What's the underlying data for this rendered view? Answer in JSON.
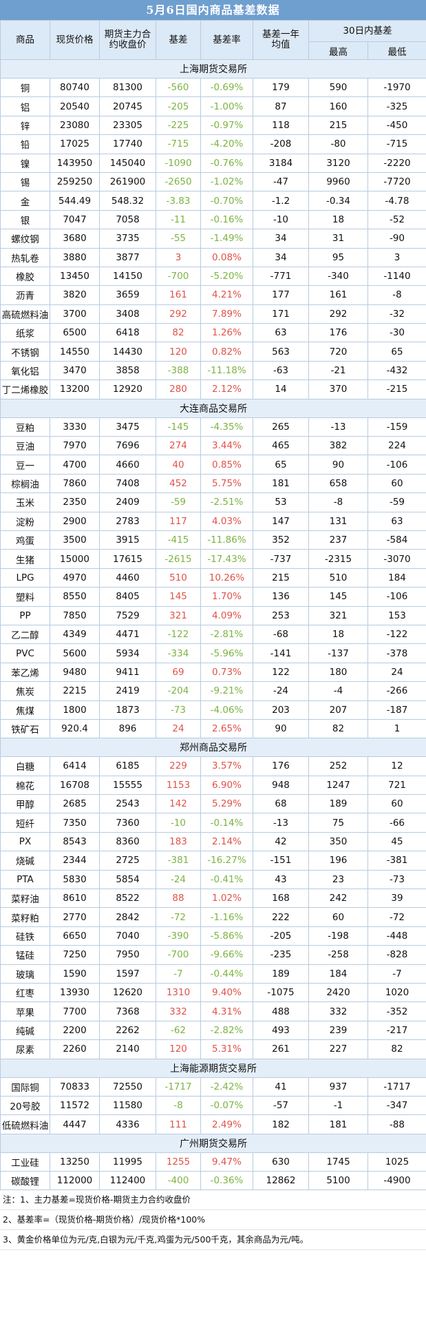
{
  "title": "5月6日国内商品基差数据",
  "headers": {
    "name": "商品",
    "spot": "现货价格",
    "futures": "期货主力合约收盘价",
    "basis": "基差",
    "rate": "基差率",
    "avg": "基差一年均值",
    "range30": "30日内基差",
    "high": "最高",
    "low": "最低"
  },
  "colors": {
    "positive": "#e0524a",
    "negative": "#7cb342",
    "header": "#6f9fcf"
  },
  "sections": [
    {
      "name": "上海期货交易所",
      "rows": [
        [
          "铜",
          "80740",
          "81300",
          "-560",
          "-0.69%",
          "179",
          "590",
          "-1970"
        ],
        [
          "铝",
          "20540",
          "20745",
          "-205",
          "-1.00%",
          "87",
          "160",
          "-325"
        ],
        [
          "锌",
          "23080",
          "23305",
          "-225",
          "-0.97%",
          "118",
          "215",
          "-450"
        ],
        [
          "铅",
          "17025",
          "17740",
          "-715",
          "-4.20%",
          "-208",
          "-80",
          "-715"
        ],
        [
          "镍",
          "143950",
          "145040",
          "-1090",
          "-0.76%",
          "3184",
          "3120",
          "-2220"
        ],
        [
          "锡",
          "259250",
          "261900",
          "-2650",
          "-1.02%",
          "-47",
          "9960",
          "-7720"
        ],
        [
          "金",
          "544.49",
          "548.32",
          "-3.83",
          "-0.70%",
          "-1.2",
          "-0.34",
          "-4.78"
        ],
        [
          "银",
          "7047",
          "7058",
          "-11",
          "-0.16%",
          "-10",
          "18",
          "-52"
        ],
        [
          "螺纹钢",
          "3680",
          "3735",
          "-55",
          "-1.49%",
          "34",
          "31",
          "-90"
        ],
        [
          "热轧卷",
          "3880",
          "3877",
          "3",
          "0.08%",
          "34",
          "95",
          "3"
        ],
        [
          "橡胶",
          "13450",
          "14150",
          "-700",
          "-5.20%",
          "-771",
          "-340",
          "-1140"
        ],
        [
          "沥青",
          "3820",
          "3659",
          "161",
          "4.21%",
          "177",
          "161",
          "-8"
        ],
        [
          "高硫燃料油",
          "3700",
          "3408",
          "292",
          "7.89%",
          "171",
          "292",
          "-32"
        ],
        [
          "纸浆",
          "6500",
          "6418",
          "82",
          "1.26%",
          "63",
          "176",
          "-30"
        ],
        [
          "不锈钢",
          "14550",
          "14430",
          "120",
          "0.82%",
          "563",
          "720",
          "65"
        ],
        [
          "氧化铝",
          "3470",
          "3858",
          "-388",
          "-11.18%",
          "-63",
          "-21",
          "-432"
        ],
        [
          "丁二烯橡胶",
          "13200",
          "12920",
          "280",
          "2.12%",
          "14",
          "370",
          "-215"
        ]
      ]
    },
    {
      "name": "大连商品交易所",
      "rows": [
        [
          "豆粕",
          "3330",
          "3475",
          "-145",
          "-4.35%",
          "265",
          "-13",
          "-159"
        ],
        [
          "豆油",
          "7970",
          "7696",
          "274",
          "3.44%",
          "465",
          "382",
          "224"
        ],
        [
          "豆一",
          "4700",
          "4660",
          "40",
          "0.85%",
          "65",
          "90",
          "-106"
        ],
        [
          "棕榈油",
          "7860",
          "7408",
          "452",
          "5.75%",
          "181",
          "658",
          "60"
        ],
        [
          "玉米",
          "2350",
          "2409",
          "-59",
          "-2.51%",
          "53",
          "-8",
          "-59"
        ],
        [
          "淀粉",
          "2900",
          "2783",
          "117",
          "4.03%",
          "147",
          "131",
          "63"
        ],
        [
          "鸡蛋",
          "3500",
          "3915",
          "-415",
          "-11.86%",
          "352",
          "237",
          "-584"
        ],
        [
          "生猪",
          "15000",
          "17615",
          "-2615",
          "-17.43%",
          "-737",
          "-2315",
          "-3070"
        ],
        [
          "LPG",
          "4970",
          "4460",
          "510",
          "10.26%",
          "215",
          "510",
          "184"
        ],
        [
          "塑料",
          "8550",
          "8405",
          "145",
          "1.70%",
          "136",
          "145",
          "-106"
        ],
        [
          "PP",
          "7850",
          "7529",
          "321",
          "4.09%",
          "253",
          "321",
          "153"
        ],
        [
          "乙二醇",
          "4349",
          "4471",
          "-122",
          "-2.81%",
          "-68",
          "18",
          "-122"
        ],
        [
          "PVC",
          "5600",
          "5934",
          "-334",
          "-5.96%",
          "-141",
          "-137",
          "-378"
        ],
        [
          "苯乙烯",
          "9480",
          "9411",
          "69",
          "0.73%",
          "122",
          "180",
          "24"
        ],
        [
          "焦炭",
          "2215",
          "2419",
          "-204",
          "-9.21%",
          "-24",
          "-4",
          "-266"
        ],
        [
          "焦煤",
          "1800",
          "1873",
          "-73",
          "-4.06%",
          "203",
          "207",
          "-187"
        ],
        [
          "铁矿石",
          "920.4",
          "896",
          "24",
          "2.65%",
          "90",
          "82",
          "1"
        ]
      ]
    },
    {
      "name": "郑州商品交易所",
      "rows": [
        [
          "白糖",
          "6414",
          "6185",
          "229",
          "3.57%",
          "176",
          "252",
          "12"
        ],
        [
          "棉花",
          "16708",
          "15555",
          "1153",
          "6.90%",
          "948",
          "1247",
          "721"
        ],
        [
          "甲醇",
          "2685",
          "2543",
          "142",
          "5.29%",
          "68",
          "189",
          "60"
        ],
        [
          "短纤",
          "7350",
          "7360",
          "-10",
          "-0.14%",
          "-13",
          "75",
          "-66"
        ],
        [
          "PX",
          "8543",
          "8360",
          "183",
          "2.14%",
          "42",
          "350",
          "45"
        ],
        [
          "烧碱",
          "2344",
          "2725",
          "-381",
          "-16.27%",
          "-151",
          "196",
          "-381"
        ],
        [
          "PTA",
          "5830",
          "5854",
          "-24",
          "-0.41%",
          "43",
          "23",
          "-73"
        ],
        [
          "菜籽油",
          "8610",
          "8522",
          "88",
          "1.02%",
          "168",
          "242",
          "39"
        ],
        [
          "菜籽粕",
          "2770",
          "2842",
          "-72",
          "-1.16%",
          "222",
          "60",
          "-72"
        ],
        [
          "硅铁",
          "6650",
          "7040",
          "-390",
          "-5.86%",
          "-205",
          "-198",
          "-448"
        ],
        [
          "锰硅",
          "7250",
          "7950",
          "-700",
          "-9.66%",
          "-235",
          "-258",
          "-828"
        ],
        [
          "玻璃",
          "1590",
          "1597",
          "-7",
          "-0.44%",
          "189",
          "184",
          "-7"
        ],
        [
          "红枣",
          "13930",
          "12620",
          "1310",
          "9.40%",
          "-1075",
          "2420",
          "1020"
        ],
        [
          "苹果",
          "7700",
          "7368",
          "332",
          "4.31%",
          "488",
          "332",
          "-352"
        ],
        [
          "纯碱",
          "2200",
          "2262",
          "-62",
          "-2.82%",
          "493",
          "239",
          "-217"
        ],
        [
          "尿素",
          "2260",
          "2140",
          "120",
          "5.31%",
          "261",
          "227",
          "82"
        ]
      ]
    },
    {
      "name": "上海能源期货交易所",
      "rows": [
        [
          "国际铜",
          "70833",
          "72550",
          "-1717",
          "-2.42%",
          "41",
          "937",
          "-1717"
        ],
        [
          "20号胶",
          "11572",
          "11580",
          "-8",
          "-0.07%",
          "-57",
          "-1",
          "-347"
        ],
        [
          "低硫燃料油",
          "4447",
          "4336",
          "111",
          "2.49%",
          "182",
          "181",
          "-88"
        ]
      ]
    },
    {
      "name": "广州期货交易所",
      "rows": [
        [
          "工业硅",
          "13250",
          "11995",
          "1255",
          "9.47%",
          "630",
          "1745",
          "1025"
        ],
        [
          "碳酸锂",
          "112000",
          "112400",
          "-400",
          "-0.36%",
          "12862",
          "5100",
          "-4900"
        ]
      ]
    }
  ],
  "notes": [
    "注：1、主力基差=现货价格-期货主力合约收盘价",
    "2、基差率=（现货价格-期货价格）/现货价格*100%",
    "3、黄金价格单位为元/克,白银为元/千克,鸡蛋为元/500千克，其余商品为元/吨。"
  ]
}
